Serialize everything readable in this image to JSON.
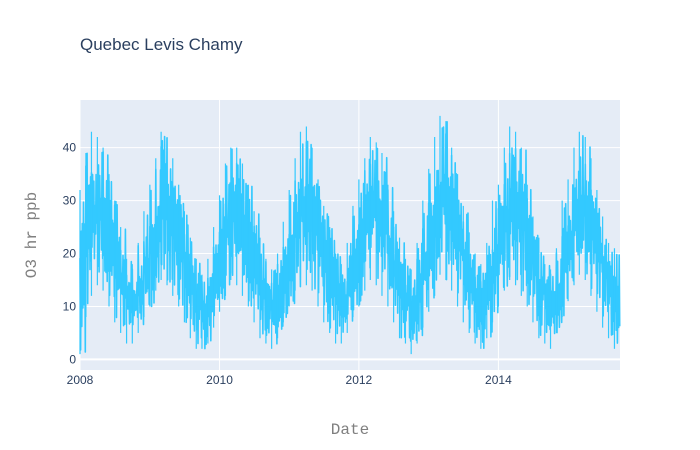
{
  "chart_data": {
    "type": "line",
    "title": "Quebec Levis Chamy",
    "xlabel": "Date",
    "ylabel": "O3 hr ppb",
    "xlim": [
      "2008-01-01",
      "2015-09-30"
    ],
    "ylim": [
      -2,
      49
    ],
    "x_ticks": [
      "2008",
      "2010",
      "2012",
      "2014"
    ],
    "y_ticks": [
      0,
      10,
      20,
      30,
      40
    ],
    "grid": true,
    "legend": "none",
    "series": [
      {
        "color": "#33c9ff",
        "x": [
          "2008-01-01",
          "2008-02-01",
          "2008-03-01",
          "2008-04-01",
          "2008-05-01",
          "2008-06-01",
          "2008-07-01",
          "2008-08-01",
          "2008-09-01",
          "2008-10-01",
          "2008-11-01",
          "2008-12-01",
          "2009-01-01",
          "2009-02-01",
          "2009-03-01",
          "2009-04-01",
          "2009-05-01",
          "2009-06-01",
          "2009-07-01",
          "2009-08-01",
          "2009-09-01",
          "2009-10-01",
          "2009-11-01",
          "2009-12-01",
          "2010-01-01",
          "2010-02-01",
          "2010-03-01",
          "2010-04-01",
          "2010-05-01",
          "2010-06-01",
          "2010-07-01",
          "2010-08-01",
          "2010-09-01",
          "2010-10-01",
          "2010-11-01",
          "2010-12-01",
          "2011-01-01",
          "2011-02-01",
          "2011-03-01",
          "2011-04-01",
          "2011-05-01",
          "2011-06-01",
          "2011-07-01",
          "2011-08-01",
          "2011-09-01",
          "2011-10-01",
          "2011-11-01",
          "2011-12-01",
          "2012-01-01",
          "2012-02-01",
          "2012-03-01",
          "2012-04-01",
          "2012-05-01",
          "2012-06-01",
          "2012-07-01",
          "2012-08-01",
          "2012-09-01",
          "2012-10-01",
          "2012-11-01",
          "2012-12-01",
          "2013-01-01",
          "2013-02-01",
          "2013-03-01",
          "2013-04-01",
          "2013-05-01",
          "2013-06-01",
          "2013-07-01",
          "2013-08-01",
          "2013-09-01",
          "2013-10-01",
          "2013-11-01",
          "2013-12-01",
          "2014-01-01",
          "2014-02-01",
          "2014-03-01",
          "2014-04-01",
          "2014-05-01",
          "2014-06-01",
          "2014-07-01",
          "2014-08-01",
          "2014-09-01",
          "2014-10-01",
          "2014-11-01",
          "2014-12-01",
          "2015-01-01",
          "2015-02-01",
          "2015-03-01",
          "2015-04-01",
          "2015-05-01",
          "2015-06-01",
          "2015-07-01",
          "2015-08-01",
          "2015-09-01"
        ],
        "y_min": [
          1,
          8,
          12,
          14,
          13,
          10,
          7,
          5,
          3,
          3,
          5,
          8,
          10,
          13,
          15,
          14,
          12,
          10,
          7,
          4,
          2,
          2,
          3,
          6,
          9,
          12,
          15,
          14,
          12,
          10,
          7,
          4,
          3,
          2,
          4,
          7,
          10,
          13,
          15,
          14,
          13,
          10,
          7,
          5,
          3,
          3,
          5,
          8,
          10,
          13,
          15,
          14,
          12,
          10,
          7,
          4,
          3,
          1,
          3,
          6,
          9,
          12,
          16,
          15,
          13,
          10,
          7,
          5,
          3,
          2,
          4,
          7,
          10,
          13,
          15,
          14,
          12,
          10,
          7,
          4,
          3,
          2,
          5,
          8,
          11,
          14,
          16,
          15,
          12,
          9,
          6,
          4,
          2
        ],
        "y_max": [
          32,
          39,
          43,
          42,
          40,
          35,
          30,
          25,
          19,
          18,
          22,
          28,
          33,
          38,
          43,
          42,
          38,
          33,
          28,
          23,
          19,
          16,
          19,
          25,
          31,
          37,
          40,
          40,
          37,
          33,
          28,
          23,
          19,
          17,
          20,
          26,
          32,
          38,
          43,
          44,
          40,
          34,
          29,
          25,
          20,
          18,
          22,
          29,
          34,
          38,
          42,
          41,
          39,
          33,
          28,
          23,
          19,
          17,
          22,
          30,
          36,
          42,
          46,
          45,
          40,
          35,
          29,
          24,
          20,
          18,
          22,
          30,
          33,
          40,
          44,
          43,
          40,
          33,
          27,
          23,
          18,
          17,
          21,
          30,
          34,
          40,
          43,
          42,
          38,
          32,
          27,
          22,
          21
        ]
      }
    ]
  }
}
